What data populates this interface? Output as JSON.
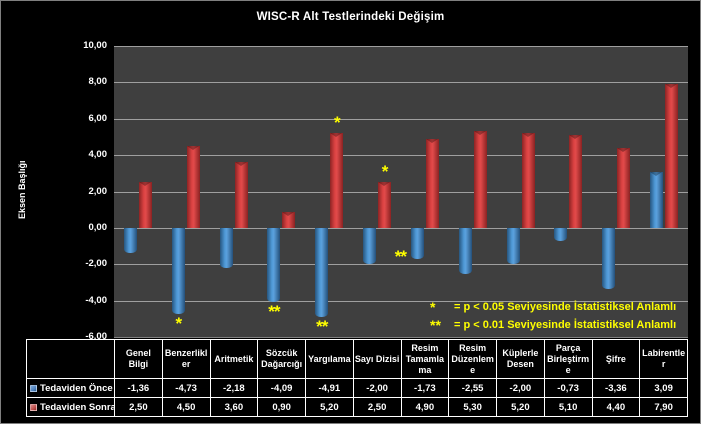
{
  "colors": {
    "background": "#000000",
    "plot_background": "#3f3f3f",
    "grid": "#a6a6a6",
    "text": "#ffffff",
    "annotation": "#ffff00",
    "series_before": "#4f81bd",
    "series_after": "#c0504d"
  },
  "chart_data": {
    "type": "bar",
    "title": "WISC-R Alt Testlerindeki Değişim",
    "ylabel": "Eksen Başlığı",
    "ylim": [
      -6,
      10
    ],
    "ytick_step": 2,
    "decimal_separator": ",",
    "grid": true,
    "legend_position": "table-left",
    "categories": [
      "Genel Bilgi",
      "Benzerlikler",
      "Aritmetik",
      "Sözcük Dağarcığı",
      "Yargılama",
      "Sayı Dizisi",
      "Resim Tamamlama",
      "Resim Düzenleme",
      "Küplerle Desen",
      "Parça Birleştirme",
      "Şifre",
      "Labirentler"
    ],
    "series": [
      {
        "name": "Tedaviden Önce",
        "color": "#4f81bd",
        "values": [
          -1.36,
          -4.73,
          -2.18,
          -4.09,
          -4.91,
          -2.0,
          -1.73,
          -2.55,
          -2.0,
          -0.73,
          -3.36,
          3.09
        ]
      },
      {
        "name": "Tedaviden Sonra",
        "color": "#c0504d",
        "values": [
          2.5,
          4.5,
          3.6,
          0.9,
          5.2,
          2.5,
          4.9,
          5.3,
          5.2,
          5.1,
          4.4,
          7.9
        ]
      }
    ],
    "annotations": [
      {
        "category_index": 1,
        "series_index": 0,
        "marker": "*",
        "placement": "below"
      },
      {
        "category_index": 3,
        "series_index": 0,
        "marker": "**",
        "placement": "below"
      },
      {
        "category_index": 4,
        "series_index": 0,
        "marker": "**",
        "placement": "below"
      },
      {
        "category_index": 4,
        "series_index": 1,
        "marker": "*",
        "placement": "above"
      },
      {
        "category_index": 5,
        "series_index": 1,
        "marker": "*",
        "placement": "above"
      },
      {
        "category_index": 6,
        "series_index": 0,
        "marker": "**",
        "placement": "below-left"
      }
    ],
    "significance_notes": [
      {
        "marker": "*",
        "text": "= p < 0.05 Seviyesinde İstatistiksel Anlamlı"
      },
      {
        "marker": "**",
        "text": "= p < 0.01 Seviyesinde İstatistiksel Anlamlı"
      }
    ]
  }
}
